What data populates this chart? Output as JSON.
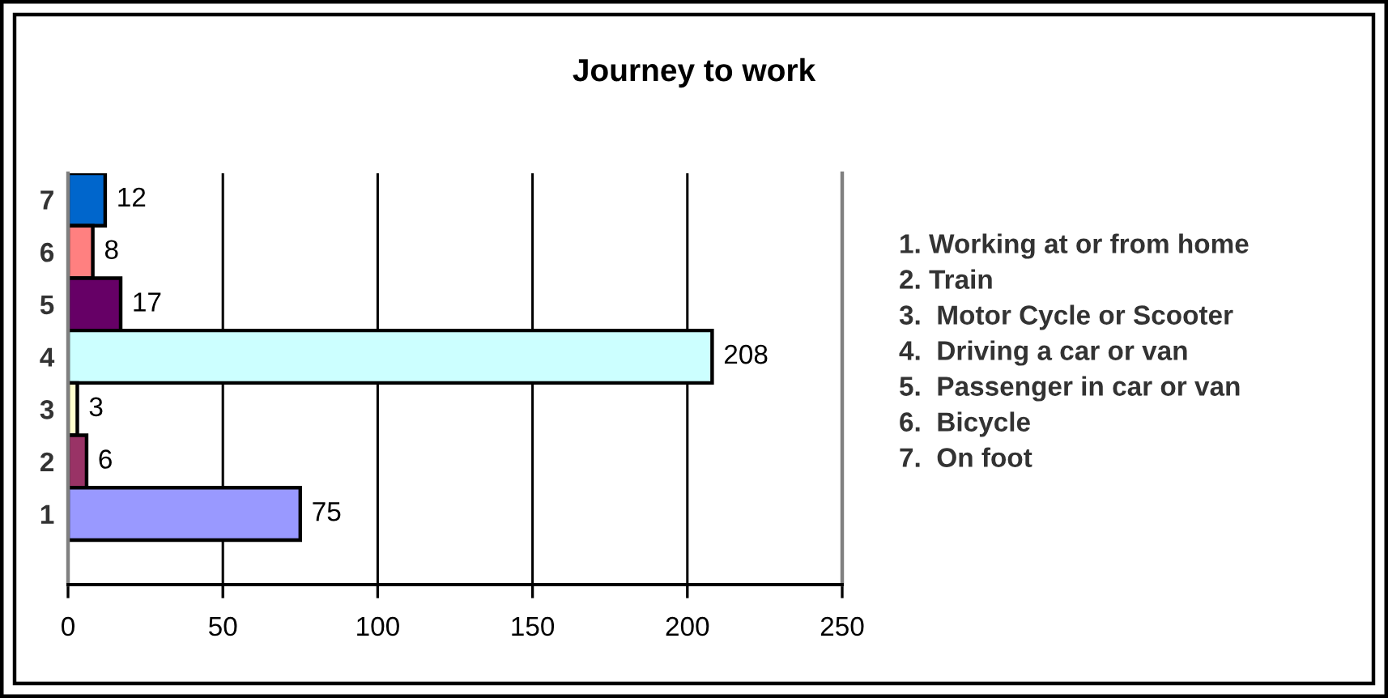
{
  "chart_data": {
    "type": "bar",
    "orientation": "horizontal",
    "title": "Journey to work",
    "categories": [
      "7",
      "6",
      "5",
      "4",
      "3",
      "2",
      "1"
    ],
    "values": [
      12,
      8,
      17,
      208,
      3,
      6,
      75
    ],
    "colors": [
      "#0066cc",
      "#ff8080",
      "#660066",
      "#ccffff",
      "#ffffcc",
      "#993366",
      "#9999ff"
    ],
    "xlim": [
      0,
      250
    ],
    "xticks": [
      0,
      50,
      100,
      150,
      200,
      250
    ],
    "grid": "x",
    "data_labels": true,
    "annotations": [
      "1. Working at or from home",
      "2. Train",
      "3.  Motor Cycle or Scooter",
      "4.  Driving a car or van",
      "5.  Passenger in car or van",
      "6.  Bicycle",
      "7.  On foot"
    ]
  }
}
